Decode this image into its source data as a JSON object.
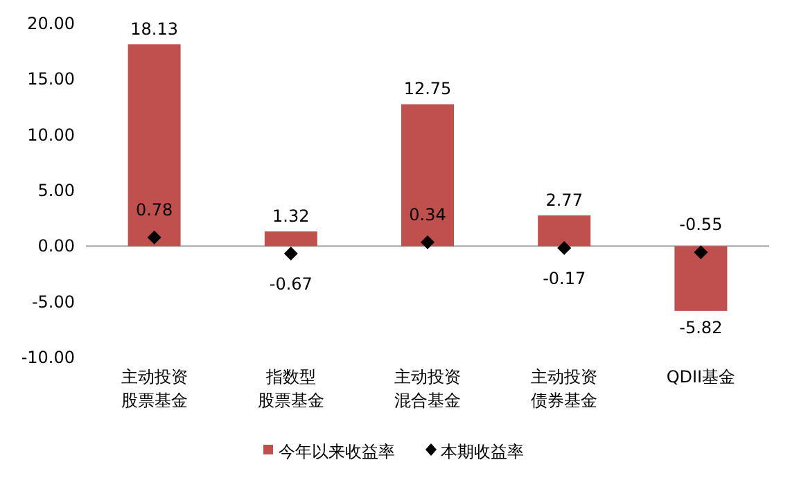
{
  "chart_data": {
    "type": "bar",
    "categories": [
      "主动投资股票基金",
      "指数型股票基金",
      "主动投资混合基金",
      "主动投资债券基金",
      "QDII基金"
    ],
    "series": [
      {
        "name": "今年以来收益率",
        "color": "#c0504d",
        "values": [
          18.13,
          1.32,
          12.75,
          2.77,
          -5.82
        ]
      },
      {
        "name": "本期收益率",
        "type": "scatter",
        "color": "#000000",
        "marker": "diamond",
        "values": [
          0.78,
          -0.67,
          0.34,
          -0.17,
          -0.55
        ]
      }
    ],
    "ylim": [
      -10,
      20
    ],
    "yticks": [
      {
        "value": -10,
        "label": "-10.00"
      },
      {
        "value": -5,
        "label": "-5.00"
      },
      {
        "value": 0,
        "label": "0.00"
      },
      {
        "value": 5,
        "label": "5.00"
      },
      {
        "value": 10,
        "label": "10.00"
      },
      {
        "value": 15,
        "label": "15.00"
      },
      {
        "value": 20,
        "label": "20.00"
      }
    ],
    "data_labels": true,
    "legend": "bottom"
  }
}
